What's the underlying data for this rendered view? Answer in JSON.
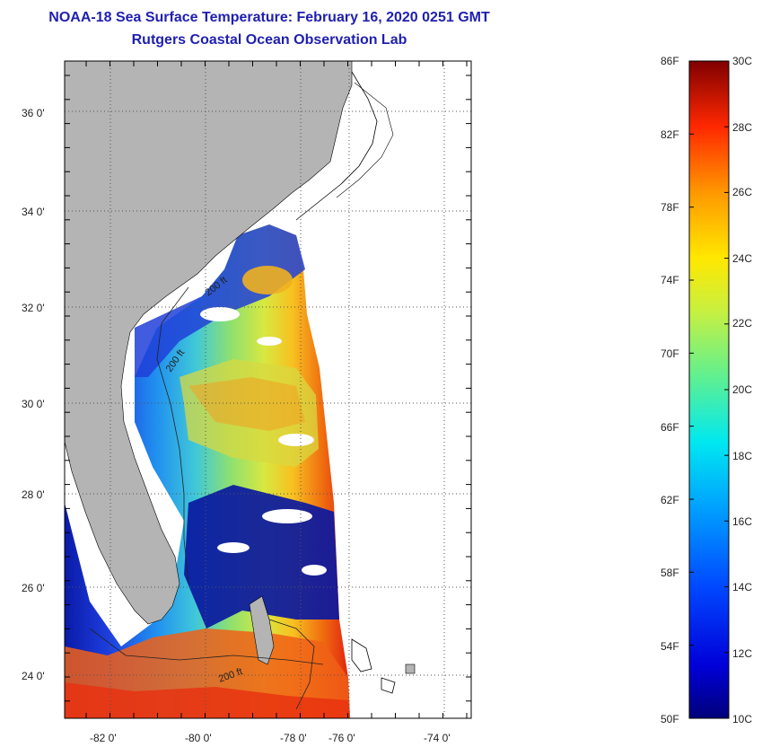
{
  "title": {
    "line1": "NOAA-18 Sea Surface Temperature:  February 16, 2020 0251 GMT",
    "line2": "Rutgers Coastal Ocean Observation Lab"
  },
  "map": {
    "lat_labels": [
      "36 0'",
      "34 0'",
      "32 0'",
      "30 0'",
      "28 0'",
      "26 0'",
      "24 0'"
    ],
    "lon_labels": [
      "-82 0'",
      "-80 0'",
      "-78 0'",
      "-76 0'",
      "-74 0'"
    ],
    "isobath_labels": [
      "200 ft",
      "200 ft",
      "200 ft"
    ],
    "land_color": "#b4b4b4",
    "coast_color": "#000000",
    "ocean_nodata_color": "#ffffff"
  },
  "colorbar": {
    "f_labels": [
      "86F",
      "82F",
      "78F",
      "74F",
      "70F",
      "66F",
      "62F",
      "58F",
      "54F",
      "50F"
    ],
    "c_labels": [
      "30C",
      "28C",
      "26C",
      "24C",
      "22C",
      "20C",
      "18C",
      "16C",
      "14C",
      "12C",
      "10C"
    ],
    "min_c": 10,
    "max_c": 30,
    "min_f": 50,
    "max_f": 86
  }
}
